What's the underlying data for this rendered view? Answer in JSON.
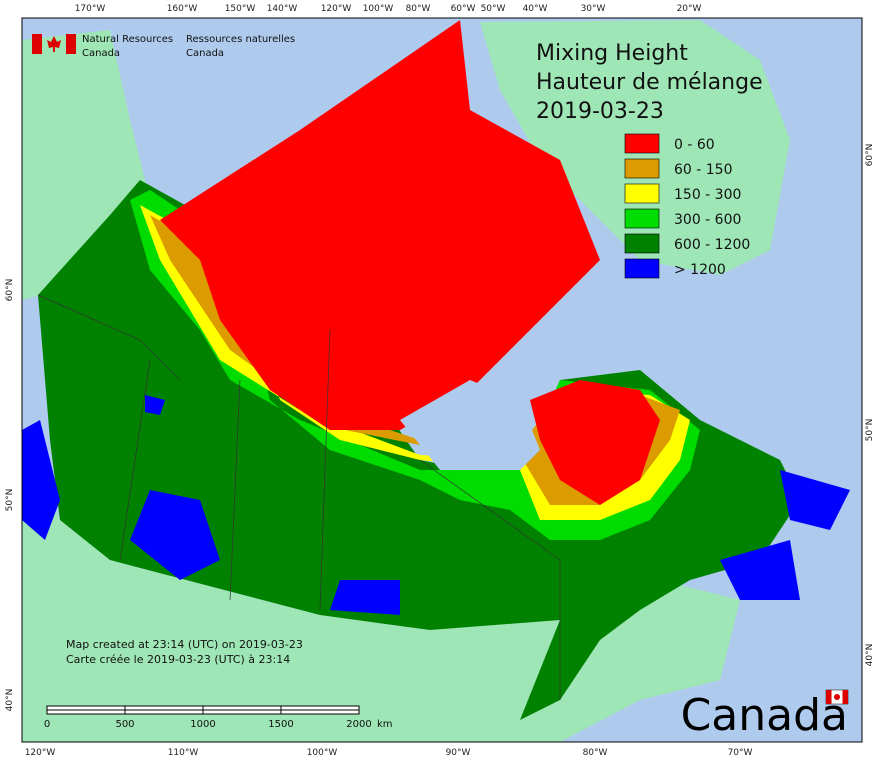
{
  "header": {
    "agency_en": [
      "Natural Resources",
      "Canada"
    ],
    "agency_fr": [
      "Ressources naturelles",
      "Canada"
    ]
  },
  "title": [
    "Mixing Height",
    "Hauteur de mélange",
    "2019-03-23"
  ],
  "legend": [
    {
      "label": "0 - 60",
      "color": "#ff0000"
    },
    {
      "label": "60 - 150",
      "color": "#dc9c00"
    },
    {
      "label": "150 - 300",
      "color": "#ffff00"
    },
    {
      "label": "300 - 600",
      "color": "#00dc00"
    },
    {
      "label": "600 - 1200",
      "color": "#008200"
    },
    {
      "label": "> 1200",
      "color": "#0000ff"
    }
  ],
  "top_longitudes": [
    "170°W",
    "160°W",
    "150°W",
    "140°W",
    "120°W",
    "100°W",
    "80°W",
    "60°W",
    "50°W",
    "40°W",
    "30°W",
    "20°W"
  ],
  "bottom_longitudes": [
    "120°W",
    "110°W",
    "100°W",
    "90°W",
    "80°W",
    "70°W"
  ],
  "left_latitudes": [
    "60°N",
    "50°N",
    "40°N"
  ],
  "right_latitudes": [
    "60°N",
    "50°N",
    "40°N"
  ],
  "footer": [
    "Map created at 23:14 (UTC) on 2019-03-23",
    "Carte créée le 2019-03-23 (UTC) à 23:14"
  ],
  "scale": {
    "labels": [
      "0",
      "500",
      "1000",
      "1500",
      "2000"
    ],
    "unit": "km"
  },
  "wordmark": "Canada"
}
